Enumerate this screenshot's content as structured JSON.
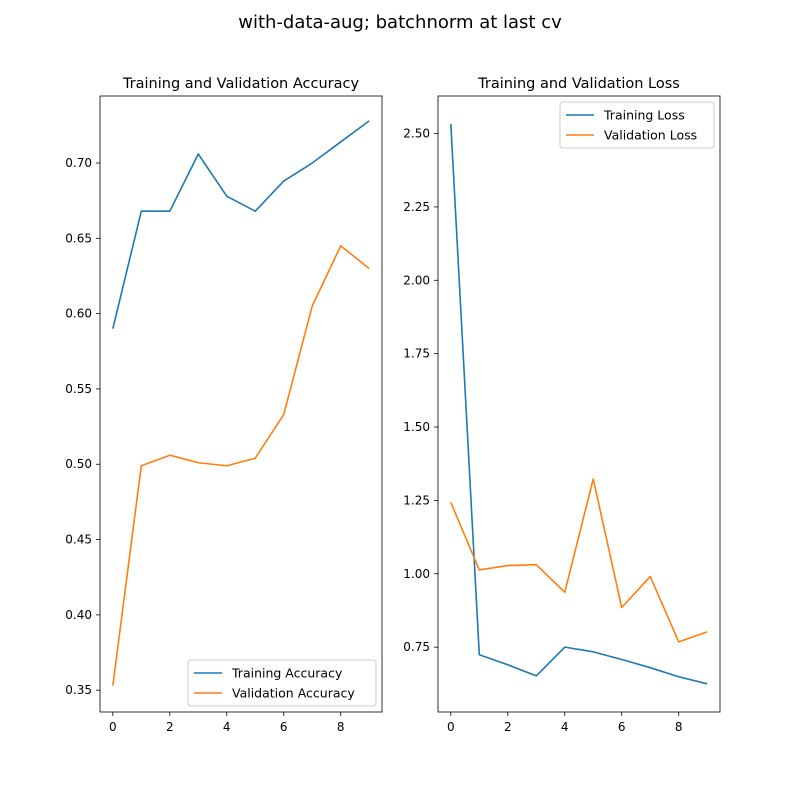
{
  "figure": {
    "suptitle": "with-data-aug; batchnorm at last cv"
  },
  "colors": {
    "training": "#1f77b4",
    "validation": "#ff7f0e"
  },
  "chart_data": [
    {
      "type": "line",
      "title": "Training and Validation Accuracy",
      "xlabel": "",
      "ylabel": "",
      "x": [
        0,
        1,
        2,
        3,
        4,
        5,
        6,
        7,
        8,
        9
      ],
      "xlim": [
        -0.45,
        9.45
      ],
      "ylim": [
        0.3355,
        0.7445
      ],
      "xticks": [
        0,
        2,
        4,
        6,
        8
      ],
      "xtick_labels": [
        "0",
        "2",
        "4",
        "6",
        "8"
      ],
      "yticks": [
        0.35,
        0.4,
        0.45,
        0.5,
        0.55,
        0.6,
        0.65,
        0.7
      ],
      "ytick_labels": [
        "0.35",
        "0.40",
        "0.45",
        "0.50",
        "0.55",
        "0.60",
        "0.65",
        "0.70"
      ],
      "legend_position": "lower-right",
      "grid": false,
      "series": [
        {
          "name": "Training Accuracy",
          "color": "#1f77b4",
          "values": [
            0.59,
            0.668,
            0.668,
            0.706,
            0.678,
            0.668,
            0.688,
            0.7,
            0.714,
            0.728
          ]
        },
        {
          "name": "Validation Accuracy",
          "color": "#ff7f0e",
          "values": [
            0.353,
            0.499,
            0.506,
            0.501,
            0.499,
            0.504,
            0.533,
            0.605,
            0.645,
            0.63
          ]
        }
      ]
    },
    {
      "type": "line",
      "title": "Training and Validation Loss",
      "xlabel": "",
      "ylabel": "",
      "x": [
        0,
        1,
        2,
        3,
        4,
        5,
        6,
        7,
        8,
        9
      ],
      "xlim": [
        -0.45,
        9.45
      ],
      "ylim": [
        0.529,
        2.628
      ],
      "xticks": [
        0,
        2,
        4,
        6,
        8
      ],
      "xtick_labels": [
        "0",
        "2",
        "4",
        "6",
        "8"
      ],
      "yticks": [
        0.75,
        1.0,
        1.25,
        1.5,
        1.75,
        2.0,
        2.25,
        2.5
      ],
      "ytick_labels": [
        "0.75",
        "1.00",
        "1.25",
        "1.50",
        "1.75",
        "2.00",
        "2.25",
        "2.50"
      ],
      "legend_position": "upper-right",
      "grid": false,
      "series": [
        {
          "name": "Training Loss",
          "color": "#1f77b4",
          "values": [
            2.533,
            0.724,
            0.69,
            0.652,
            0.75,
            0.734,
            0.708,
            0.68,
            0.649,
            0.625
          ]
        },
        {
          "name": "Validation Loss",
          "color": "#ff7f0e",
          "values": [
            1.243,
            1.013,
            1.028,
            1.031,
            0.937,
            1.323,
            0.885,
            0.991,
            0.768,
            0.802
          ]
        }
      ]
    }
  ]
}
